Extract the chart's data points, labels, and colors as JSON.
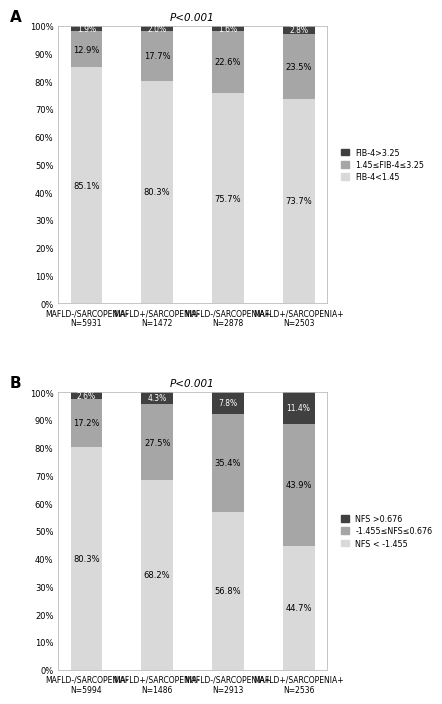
{
  "panel_A": {
    "title": "P<0.001",
    "categories": [
      "MAFLD-/SARCOPENIA-\nN=5931",
      "MAFLD+/SARCOPENIA-\nN=1472",
      "MAFLD-/SARCOPENIA+\nN=2878",
      "MAFLD+/SARCOPENIA+\nN=2503"
    ],
    "low": [
      85.1,
      80.3,
      75.7,
      73.7
    ],
    "mid": [
      12.9,
      17.7,
      22.6,
      23.5
    ],
    "high": [
      1.9,
      2.0,
      1.6,
      2.8
    ],
    "legend_labels": [
      "FIB-4>3.25",
      "1.45≤FIB-4≤3.25",
      "FIB-4<1.45"
    ],
    "colors_low": "#d9d9d9",
    "colors_mid": "#a6a6a6",
    "colors_high": "#404040"
  },
  "panel_B": {
    "title": "P<0.001",
    "categories": [
      "MAFLD-/SARCOPENIA-\nN=5994",
      "MAFLD+/SARCOPENIA-\nN=1486",
      "MAFLD-/SARCOPENIA+\nN=2913",
      "MAFLD+/SARCOPENIA+\nN=2536"
    ],
    "low": [
      80.3,
      68.2,
      56.8,
      44.7
    ],
    "mid": [
      17.2,
      27.5,
      35.4,
      43.9
    ],
    "high": [
      2.6,
      4.3,
      7.8,
      11.4
    ],
    "legend_labels": [
      "NFS >0.676",
      "-1.455≤NFS≤0.676",
      "NFS < -1.455"
    ],
    "colors_low": "#d9d9d9",
    "colors_mid": "#a6a6a6",
    "colors_high": "#404040"
  },
  "label_fontsize": 6.0,
  "tick_fontsize": 6.0,
  "bar_width": 0.45,
  "legend_fontsize": 5.8
}
